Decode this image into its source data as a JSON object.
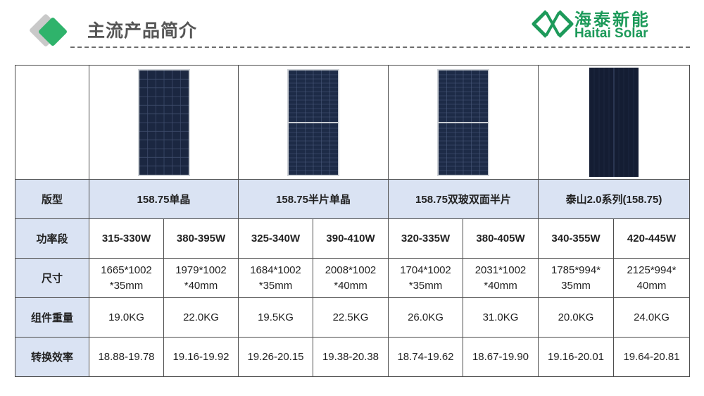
{
  "header": {
    "title": "主流产品简介",
    "brand_cn": "海泰新能",
    "brand_en": "Haitai Solar"
  },
  "table": {
    "row_labels": {
      "type": "版型",
      "power": "功率段",
      "size": "尺寸",
      "weight": "组件重量",
      "efficiency": "转换效率"
    },
    "types": [
      "158.75单晶",
      "158.75半片单晶",
      "158.75双玻双面半片",
      "泰山2.0系列(158.75)"
    ],
    "power": [
      "315-330W",
      "380-395W",
      "325-340W",
      "390-410W",
      "320-335W",
      "380-405W",
      "340-355W",
      "420-445W"
    ],
    "size": [
      [
        "1665*1002",
        "*35mm"
      ],
      [
        "1979*1002",
        "*40mm"
      ],
      [
        "1684*1002",
        "*35mm"
      ],
      [
        "2008*1002",
        "*40mm"
      ],
      [
        "1704*1002",
        "*35mm"
      ],
      [
        "2031*1002",
        "*40mm"
      ],
      [
        "1785*994*",
        "35mm"
      ],
      [
        "2125*994*",
        "40mm"
      ]
    ],
    "weight": [
      "19.0KG",
      "22.0KG",
      "19.5KG",
      "22.5KG",
      "26.0KG",
      "31.0KG",
      "20.0KG",
      "24.0KG"
    ],
    "efficiency": [
      "18.88-19.78",
      "19.16-19.92",
      "19.26-20.15",
      "19.38-20.38",
      "18.74-19.62",
      "18.67-19.90",
      "19.16-20.01",
      "19.64-20.81"
    ]
  },
  "colors": {
    "brand_green": "#1d9a5a",
    "label_bg": "#dae3f3",
    "power_red": "#e8231e"
  }
}
